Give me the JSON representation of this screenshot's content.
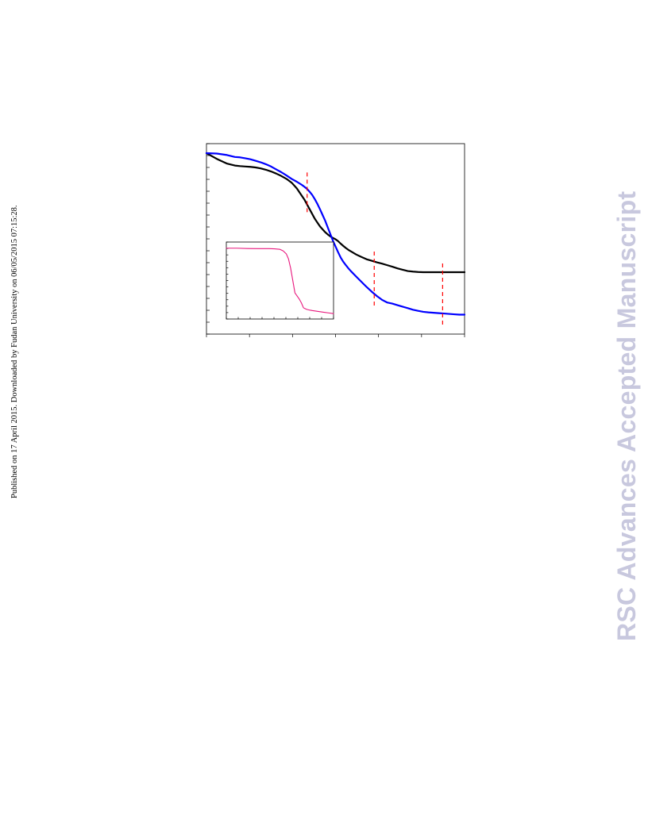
{
  "page": {
    "published_note": "Published on 17 April 2015. Downloaded by Fudan University on 06/05/2015 07:15:28.",
    "watermark": "RSC Advances Accepted Manuscript"
  },
  "colors": {
    "black_series": "#000000",
    "blue_series": "#0000ff",
    "inset_series": "#e8177d",
    "marker_lines": "#ff0000",
    "watermark": "#c8c8de"
  },
  "chart_data": [
    {
      "type": "line",
      "title": "",
      "xlabel": "",
      "ylabel": "",
      "xlim": [
        0,
        100
      ],
      "ylim": [
        0,
        100
      ],
      "grid": false,
      "legend": "none",
      "series": [
        {
          "color": "#000000",
          "x": [
            0,
            4,
            8,
            11,
            13,
            15,
            17,
            19,
            21,
            23,
            25,
            27,
            29,
            31,
            33,
            35,
            37,
            38,
            39,
            40,
            41,
            42,
            43,
            44,
            45,
            46,
            47,
            48,
            49,
            50,
            51,
            52,
            53,
            54,
            55,
            56,
            58,
            60,
            62,
            64,
            66,
            68,
            70,
            72,
            74,
            76,
            78,
            80,
            82,
            84,
            86,
            88,
            90,
            92,
            94,
            96,
            98,
            100
          ],
          "y": [
            95,
            92,
            89.5,
            88.5,
            88.2,
            88,
            87.8,
            87.5,
            87,
            86.3,
            85.4,
            84.3,
            83,
            81.5,
            79.5,
            76.5,
            72.5,
            70.5,
            68,
            65.5,
            63,
            60.5,
            58.5,
            56.5,
            55,
            53.5,
            52.3,
            51.3,
            50.5,
            49.8,
            48.8,
            47.5,
            46.3,
            45.2,
            44.2,
            43.4,
            41.8,
            40.5,
            39.3,
            38.5,
            37.7,
            37,
            36.2,
            35.4,
            34.5,
            33.8,
            33.1,
            32.8,
            32.6,
            32.5,
            32.5,
            32.5,
            32.5,
            32.5,
            32.5,
            32.5,
            32.5,
            32.5
          ]
        },
        {
          "color": "#0000ff",
          "x": [
            0,
            4,
            8,
            11,
            13,
            15,
            17,
            19,
            21,
            23,
            25,
            27,
            29,
            31,
            33,
            35,
            37,
            38,
            39,
            40,
            41,
            42,
            43,
            44,
            45,
            46,
            47,
            48,
            49,
            50,
            51,
            52,
            53,
            54,
            55,
            56,
            58,
            60,
            62,
            64,
            66,
            68,
            70,
            72,
            74,
            76,
            78,
            80,
            82,
            84,
            86,
            88,
            90,
            92,
            94,
            96,
            98,
            100
          ],
          "y": [
            95,
            94.8,
            94,
            93,
            92.8,
            92.3,
            91.8,
            91,
            90.2,
            89.2,
            88,
            86.5,
            85,
            83.3,
            81.5,
            80,
            78.3,
            77.3,
            76.2,
            74.7,
            73,
            70.8,
            68.3,
            65.5,
            62.5,
            59.5,
            56,
            52.5,
            49,
            46,
            43,
            40.2,
            38,
            36.2,
            34.5,
            33,
            30.2,
            27.5,
            24.8,
            22.3,
            20,
            18,
            16.6,
            16,
            15.2,
            14.4,
            13.6,
            12.8,
            12.2,
            11.7,
            11.4,
            11.2,
            11,
            10.8,
            10.6,
            10.4,
            10.2,
            10.2
          ]
        }
      ],
      "reference_lines_x": [
        39,
        65,
        91.5
      ],
      "reference_lines_y": [
        [
          64,
          86
        ],
        [
          15,
          45
        ],
        [
          5,
          38
        ]
      ]
    },
    {
      "type": "line",
      "title": "",
      "xlabel": "",
      "ylabel": "",
      "xlim": [
        0,
        100
      ],
      "ylim": [
        0,
        100
      ],
      "grid": false,
      "legend": "none",
      "series": [
        {
          "color": "#e8177d",
          "x": [
            0,
            10,
            20,
            30,
            40,
            45,
            50,
            53,
            56,
            58,
            60,
            62,
            64,
            66,
            68,
            70,
            72,
            75,
            78,
            80,
            85,
            90,
            95,
            100
          ],
          "y": [
            92,
            92,
            91.6,
            91.4,
            91.4,
            91.2,
            90.5,
            88.5,
            84.5,
            78,
            66,
            50,
            34,
            30,
            26,
            21,
            14.5,
            12.5,
            11.5,
            11,
            10,
            9,
            8,
            7
          ]
        }
      ]
    }
  ]
}
